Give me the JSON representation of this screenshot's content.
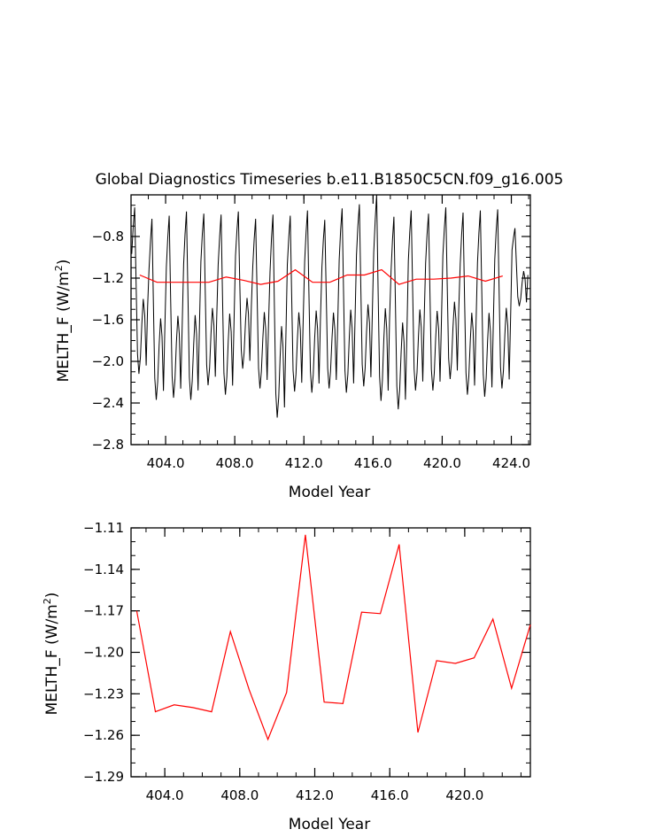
{
  "chart_data": [
    {
      "type": "line",
      "title": "Global Diagnostics Timeseries b.e11.B1850C5CN.f09_g16.005",
      "xlabel": "Model Year",
      "ylabel_main": "MELTH_F (W/m",
      "ylabel_sup": "2",
      "ylabel_close": ")",
      "xlim": [
        402.0,
        425.1
      ],
      "ylim": [
        -2.8,
        -0.4
      ],
      "xticks": [
        404.0,
        408.0,
        412.0,
        416.0,
        420.0,
        424.0
      ],
      "xtick_labels": [
        "404.0",
        "408.0",
        "412.0",
        "416.0",
        "420.0",
        "424.0"
      ],
      "yticks": [
        -2.8,
        -2.4,
        -2.0,
        -1.6,
        -1.2,
        -0.8
      ],
      "ytick_labels": [
        "−2.8",
        "−2.4",
        "−2.0",
        "−1.6",
        "−1.2",
        "−0.8"
      ],
      "series": [
        {
          "color": "#000000",
          "monthly_pattern_years": [
            402,
            403,
            404,
            405,
            406,
            407,
            408,
            409,
            410,
            411,
            412,
            413,
            414,
            415,
            416,
            417,
            418,
            419,
            420,
            421,
            422,
            423,
            424
          ],
          "annual_max": [
            -0.52,
            -0.63,
            -0.6,
            -0.56,
            -0.58,
            -0.59,
            -0.56,
            -0.63,
            -0.59,
            -0.6,
            -0.55,
            -0.64,
            -0.53,
            -0.49,
            -0.4,
            -0.61,
            -0.55,
            -0.58,
            -0.52,
            -0.57,
            -0.55,
            -0.54,
            -0.72
          ],
          "annual_min": [
            -2.12,
            -2.37,
            -2.35,
            -2.37,
            -2.23,
            -2.32,
            -2.07,
            -2.26,
            -2.54,
            -2.29,
            -2.3,
            -2.26,
            -2.3,
            -2.24,
            -2.38,
            -2.46,
            -2.28,
            -2.28,
            -2.17,
            -2.32,
            -2.34,
            -2.26,
            -1.47
          ]
        },
        {
          "color": "#ff0000",
          "x": [
            402.5,
            403.5,
            404.5,
            405.5,
            406.5,
            407.5,
            408.5,
            409.5,
            410.5,
            411.5,
            412.5,
            413.5,
            414.5,
            415.5,
            416.5,
            417.5,
            418.5,
            419.5,
            420.5,
            421.5,
            422.5,
            423.5
          ],
          "y": [
            -1.17,
            -1.24,
            -1.24,
            -1.24,
            -1.24,
            -1.19,
            -1.22,
            -1.26,
            -1.23,
            -1.12,
            -1.24,
            -1.24,
            -1.17,
            -1.17,
            -1.12,
            -1.26,
            -1.21,
            -1.21,
            -1.2,
            -1.18,
            -1.23,
            -1.18
          ]
        }
      ]
    },
    {
      "type": "line",
      "title": "",
      "xlabel": "Model Year",
      "ylabel_main": "MELTH_F (W/m",
      "ylabel_sup": "2",
      "ylabel_close": ")",
      "xlim": [
        402.2,
        423.5
      ],
      "ylim": [
        -1.29,
        -1.11
      ],
      "xticks": [
        404.0,
        408.0,
        412.0,
        416.0,
        420.0
      ],
      "xtick_labels": [
        "404.0",
        "408.0",
        "412.0",
        "416.0",
        "420.0"
      ],
      "yticks": [
        -1.29,
        -1.26,
        -1.23,
        -1.2,
        -1.17,
        -1.14,
        -1.11
      ],
      "ytick_labels": [
        "−1.29",
        "−1.26",
        "−1.23",
        "−1.20",
        "−1.17",
        "−1.14",
        "−1.11"
      ],
      "series": [
        {
          "color": "#ff0000",
          "x": [
            402.5,
            403.5,
            404.5,
            405.5,
            406.5,
            407.5,
            408.5,
            409.5,
            410.5,
            411.5,
            412.5,
            413.5,
            414.5,
            415.5,
            416.5,
            417.5,
            418.5,
            419.5,
            420.5,
            421.5,
            422.5,
            423.5
          ],
          "y": [
            -1.17,
            -1.243,
            -1.238,
            -1.24,
            -1.243,
            -1.185,
            -1.227,
            -1.263,
            -1.229,
            -1.115,
            -1.236,
            -1.237,
            -1.171,
            -1.172,
            -1.122,
            -1.258,
            -1.206,
            -1.208,
            -1.204,
            -1.176,
            -1.226,
            -1.18
          ]
        }
      ]
    }
  ]
}
